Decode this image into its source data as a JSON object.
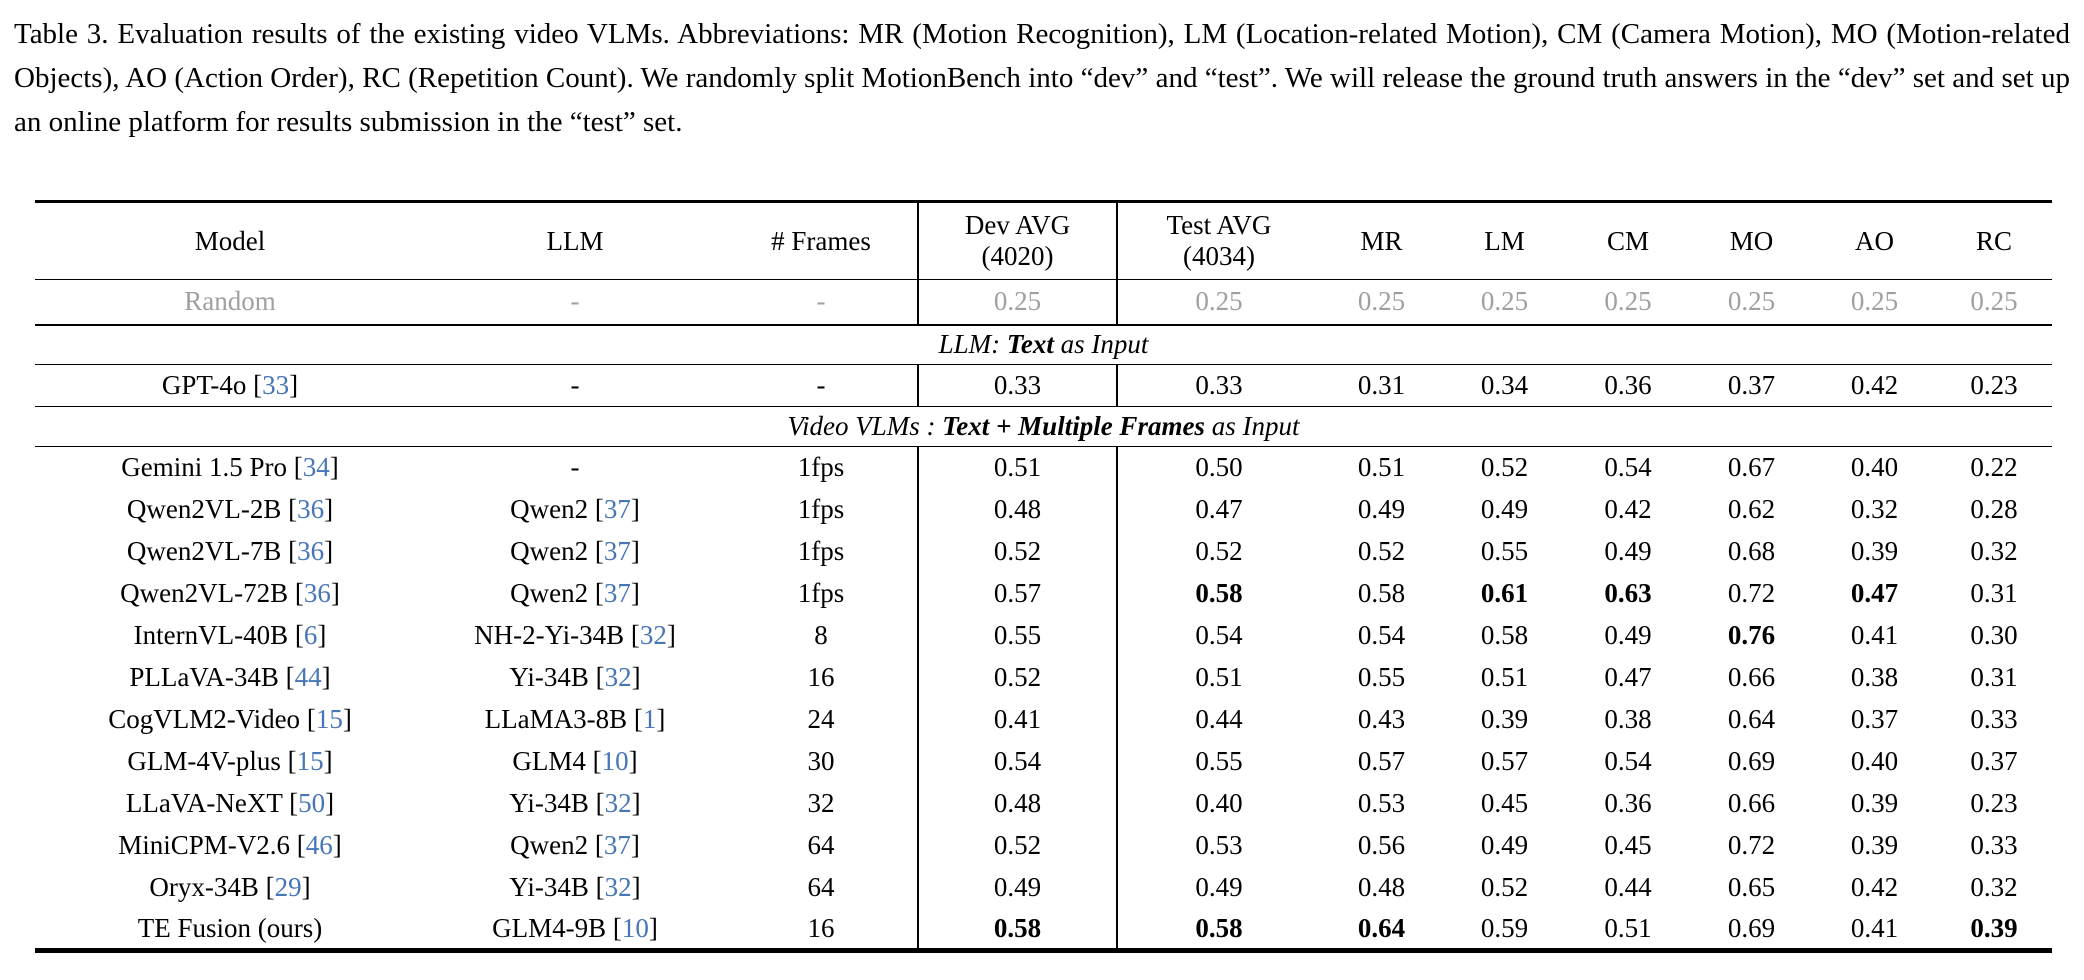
{
  "caption": {
    "text": "Table 3. Evaluation results of the existing video VLMs. Abbreviations: MR (Motion Recognition), LM (Location-related Motion), CM (Camera Motion), MO (Motion-related Objects), AO (Action Order), RC (Repetition Count). We randomly split MotionBench into “dev” and “test”. We will release the ground truth answers in the “dev” set and set up an online platform for results submission in the “test” set."
  },
  "colors": {
    "citation_blue": "#4675b8",
    "muted_gray": "#a0a0a0"
  },
  "table": {
    "headers": [
      {
        "label": "Model"
      },
      {
        "label": "LLM"
      },
      {
        "label": "# Frames"
      },
      {
        "line1": "Dev AVG",
        "line2": "(4020)"
      },
      {
        "line1": "Test AVG",
        "line2": "(4034)"
      },
      {
        "label": "MR"
      },
      {
        "label": "LM"
      },
      {
        "label": "CM"
      },
      {
        "label": "MO"
      },
      {
        "label": "AO"
      },
      {
        "label": "RC"
      }
    ],
    "rows": [
      {
        "type": "data",
        "muted": true,
        "rule_below": "rule2",
        "model": {
          "name": "Random"
        },
        "llm": {
          "name": "-"
        },
        "frames": "-",
        "values": [
          "0.25",
          "0.25",
          "0.25",
          "0.25",
          "0.25",
          "0.25",
          "0.25",
          "0.25"
        ],
        "bold": []
      },
      {
        "type": "section",
        "rule_below": "rule",
        "parts": [
          {
            "text": "LLM: ",
            "bold": false
          },
          {
            "text": "Text",
            "bold": true
          },
          {
            "text": " as Input",
            "bold": false
          }
        ]
      },
      {
        "type": "data",
        "rule_below": "rule",
        "model": {
          "name": "GPT-4o",
          "cite": "33"
        },
        "llm": {
          "name": "-"
        },
        "frames": "-",
        "values": [
          "0.33",
          "0.33",
          "0.31",
          "0.34",
          "0.36",
          "0.37",
          "0.42",
          "0.23"
        ],
        "bold": []
      },
      {
        "type": "section",
        "rule_below": "rule",
        "parts": [
          {
            "text": "Video VLMs : ",
            "bold": false
          },
          {
            "text": "Text + Multiple Frames",
            "bold": true
          },
          {
            "text": " as Input",
            "bold": false
          }
        ]
      },
      {
        "type": "data",
        "model": {
          "name": "Gemini 1.5 Pro",
          "cite": "34"
        },
        "llm": {
          "name": "-"
        },
        "frames": "1fps",
        "values": [
          "0.51",
          "0.50",
          "0.51",
          "0.52",
          "0.54",
          "0.67",
          "0.40",
          "0.22"
        ],
        "bold": []
      },
      {
        "type": "data",
        "model": {
          "name": "Qwen2VL-2B",
          "cite": "36"
        },
        "llm": {
          "name": "Qwen2",
          "cite": "37"
        },
        "frames": "1fps",
        "values": [
          "0.48",
          "0.47",
          "0.49",
          "0.49",
          "0.42",
          "0.62",
          "0.32",
          "0.28"
        ],
        "bold": []
      },
      {
        "type": "data",
        "model": {
          "name": "Qwen2VL-7B",
          "cite": "36"
        },
        "llm": {
          "name": "Qwen2",
          "cite": "37"
        },
        "frames": "1fps",
        "values": [
          "0.52",
          "0.52",
          "0.52",
          "0.55",
          "0.49",
          "0.68",
          "0.39",
          "0.32"
        ],
        "bold": []
      },
      {
        "type": "data",
        "model": {
          "name": "Qwen2VL-72B",
          "cite": "36"
        },
        "llm": {
          "name": "Qwen2",
          "cite": "37"
        },
        "frames": "1fps",
        "values": [
          "0.57",
          "0.58",
          "0.58",
          "0.61",
          "0.63",
          "0.72",
          "0.47",
          "0.31"
        ],
        "bold": [
          1,
          3,
          4,
          6
        ]
      },
      {
        "type": "data",
        "model": {
          "name": "InternVL-40B",
          "cite": "6"
        },
        "llm": {
          "name": "NH-2-Yi-34B",
          "cite": "32"
        },
        "frames": "8",
        "values": [
          "0.55",
          "0.54",
          "0.54",
          "0.58",
          "0.49",
          "0.76",
          "0.41",
          "0.30"
        ],
        "bold": [
          5
        ]
      },
      {
        "type": "data",
        "model": {
          "name": "PLLaVA-34B",
          "cite": "44"
        },
        "llm": {
          "name": "Yi-34B",
          "cite": "32"
        },
        "frames": "16",
        "values": [
          "0.52",
          "0.51",
          "0.55",
          "0.51",
          "0.47",
          "0.66",
          "0.38",
          "0.31"
        ],
        "bold": []
      },
      {
        "type": "data",
        "model": {
          "name": "CogVLM2-Video",
          "cite": "15"
        },
        "llm": {
          "name": "LLaMA3-8B",
          "cite": "1"
        },
        "frames": "24",
        "values": [
          "0.41",
          "0.44",
          "0.43",
          "0.39",
          "0.38",
          "0.64",
          "0.37",
          "0.33"
        ],
        "bold": []
      },
      {
        "type": "data",
        "model": {
          "name": "GLM-4V-plus",
          "cite": "15"
        },
        "llm": {
          "name": "GLM4",
          "cite": "10"
        },
        "frames": "30",
        "values": [
          "0.54",
          "0.55",
          "0.57",
          "0.57",
          "0.54",
          "0.69",
          "0.40",
          "0.37"
        ],
        "bold": []
      },
      {
        "type": "data",
        "model": {
          "name": "LLaVA-NeXT",
          "cite": "50"
        },
        "llm": {
          "name": "Yi-34B",
          "cite": "32"
        },
        "frames": "32",
        "values": [
          "0.48",
          "0.40",
          "0.53",
          "0.45",
          "0.36",
          "0.66",
          "0.39",
          "0.23"
        ],
        "bold": []
      },
      {
        "type": "data",
        "model": {
          "name": "MiniCPM-V2.6",
          "cite": "46"
        },
        "llm": {
          "name": "Qwen2",
          "cite": "37"
        },
        "frames": "64",
        "values": [
          "0.52",
          "0.53",
          "0.56",
          "0.49",
          "0.45",
          "0.72",
          "0.39",
          "0.33"
        ],
        "bold": []
      },
      {
        "type": "data",
        "model": {
          "name": "Oryx-34B",
          "cite": "29"
        },
        "llm": {
          "name": "Yi-34B",
          "cite": "32"
        },
        "frames": "64",
        "values": [
          "0.49",
          "0.49",
          "0.48",
          "0.52",
          "0.44",
          "0.65",
          "0.42",
          "0.32"
        ],
        "bold": []
      },
      {
        "type": "data",
        "model": {
          "name": "TE Fusion (ours)"
        },
        "llm": {
          "name": "GLM4-9B",
          "cite": "10"
        },
        "frames": "16",
        "values": [
          "0.58",
          "0.58",
          "0.64",
          "0.59",
          "0.51",
          "0.69",
          "0.41",
          "0.39"
        ],
        "bold": [
          0,
          1,
          2,
          7
        ]
      }
    ]
  }
}
